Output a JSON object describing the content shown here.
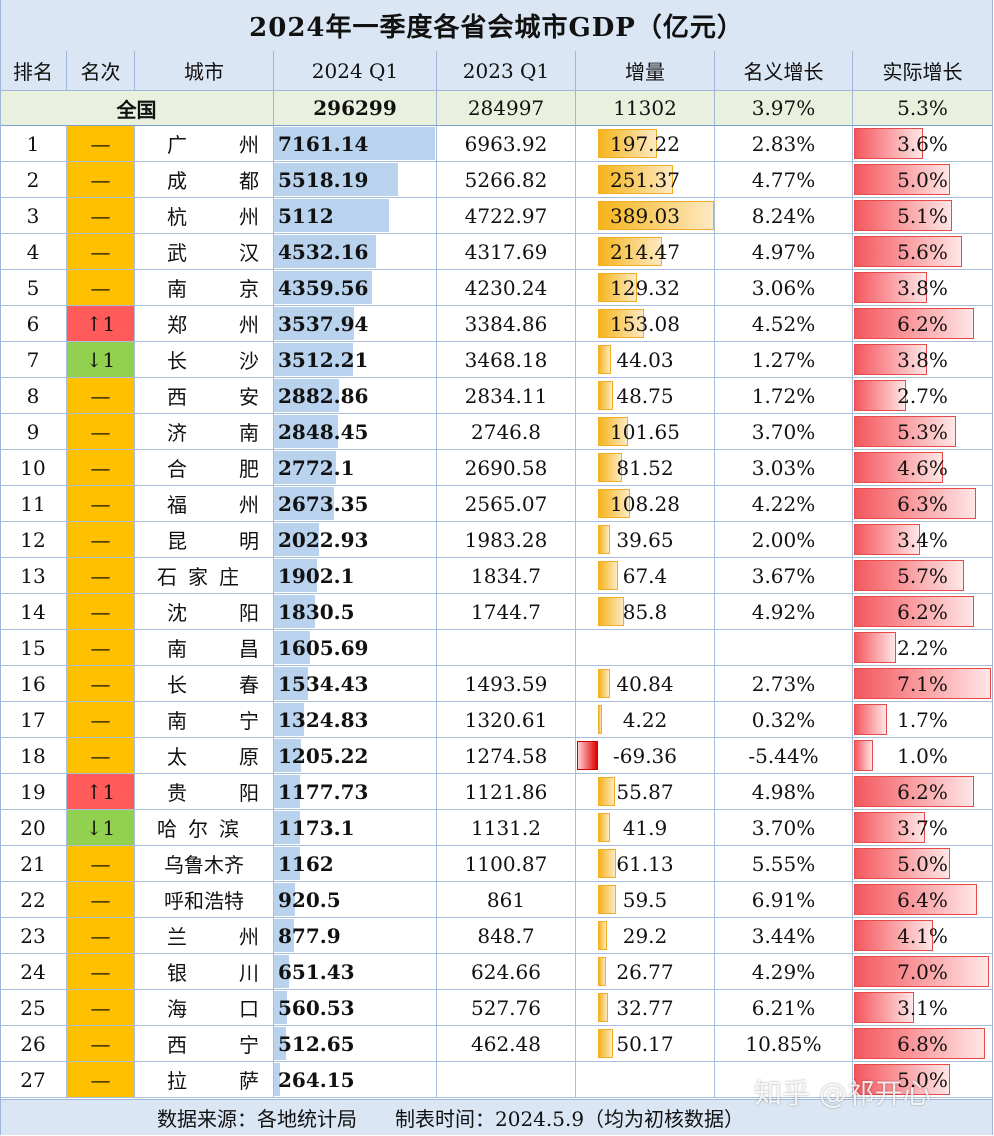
{
  "title": "2024年一季度各省会城市GDP（亿元）",
  "headers": [
    "排名",
    "名次",
    "城市",
    "2024 Q1",
    "2023 Q1",
    "增量",
    "名义增长",
    "实际增长"
  ],
  "national": {
    "label": "全国",
    "gdp2024": "296299",
    "gdp2023": "284997",
    "inc": "11302",
    "nominal": "3.97%",
    "real": "5.3%"
  },
  "colors": {
    "header": "#dbe6f4",
    "national": "#e9f0dd",
    "same": "#ffc000",
    "up": "#ff5b5b",
    "down": "#92d050"
  },
  "chart_data": {
    "type": "table",
    "columns": [
      "排名",
      "名次",
      "城市",
      "2024 Q1",
      "2023 Q1",
      "增量",
      "名义增长",
      "实际增长"
    ],
    "rows": [
      {
        "rank": "1",
        "move": "—",
        "dir": "same",
        "city": "广州",
        "gdp2024": "7161.14",
        "gdp2023": "6963.92",
        "inc": "197.22",
        "nominal": "2.83%",
        "real": "3.6%"
      },
      {
        "rank": "2",
        "move": "—",
        "dir": "same",
        "city": "成都",
        "gdp2024": "5518.19",
        "gdp2023": "5266.82",
        "inc": "251.37",
        "nominal": "4.77%",
        "real": "5.0%"
      },
      {
        "rank": "3",
        "move": "—",
        "dir": "same",
        "city": "杭州",
        "gdp2024": "5112",
        "gdp2023": "4722.97",
        "inc": "389.03",
        "nominal": "8.24%",
        "real": "5.1%"
      },
      {
        "rank": "4",
        "move": "—",
        "dir": "same",
        "city": "武汉",
        "gdp2024": "4532.16",
        "gdp2023": "4317.69",
        "inc": "214.47",
        "nominal": "4.97%",
        "real": "5.6%"
      },
      {
        "rank": "5",
        "move": "—",
        "dir": "same",
        "city": "南京",
        "gdp2024": "4359.56",
        "gdp2023": "4230.24",
        "inc": "129.32",
        "nominal": "3.06%",
        "real": "3.8%"
      },
      {
        "rank": "6",
        "move": "↑1",
        "dir": "up",
        "city": "郑州",
        "gdp2024": "3537.94",
        "gdp2023": "3384.86",
        "inc": "153.08",
        "nominal": "4.52%",
        "real": "6.2%"
      },
      {
        "rank": "7",
        "move": "↓1",
        "dir": "down",
        "city": "长沙",
        "gdp2024": "3512.21",
        "gdp2023": "3468.18",
        "inc": "44.03",
        "nominal": "1.27%",
        "real": "3.8%"
      },
      {
        "rank": "8",
        "move": "—",
        "dir": "same",
        "city": "西安",
        "gdp2024": "2882.86",
        "gdp2023": "2834.11",
        "inc": "48.75",
        "nominal": "1.72%",
        "real": "2.7%"
      },
      {
        "rank": "9",
        "move": "—",
        "dir": "same",
        "city": "济南",
        "gdp2024": "2848.45",
        "gdp2023": "2746.8",
        "inc": "101.65",
        "nominal": "3.70%",
        "real": "5.3%"
      },
      {
        "rank": "10",
        "move": "—",
        "dir": "same",
        "city": "合肥",
        "gdp2024": "2772.1",
        "gdp2023": "2690.58",
        "inc": "81.52",
        "nominal": "3.03%",
        "real": "4.6%"
      },
      {
        "rank": "11",
        "move": "—",
        "dir": "same",
        "city": "福州",
        "gdp2024": "2673.35",
        "gdp2023": "2565.07",
        "inc": "108.28",
        "nominal": "4.22%",
        "real": "6.3%"
      },
      {
        "rank": "12",
        "move": "—",
        "dir": "same",
        "city": "昆明",
        "gdp2024": "2022.93",
        "gdp2023": "1983.28",
        "inc": "39.65",
        "nominal": "2.00%",
        "real": "3.4%"
      },
      {
        "rank": "13",
        "move": "—",
        "dir": "same",
        "city": "石家庄",
        "gdp2024": "1902.1",
        "gdp2023": "1834.7",
        "inc": "67.4",
        "nominal": "3.67%",
        "real": "5.7%"
      },
      {
        "rank": "14",
        "move": "—",
        "dir": "same",
        "city": "沈阳",
        "gdp2024": "1830.5",
        "gdp2023": "1744.7",
        "inc": "85.8",
        "nominal": "4.92%",
        "real": "6.2%"
      },
      {
        "rank": "15",
        "move": "—",
        "dir": "same",
        "city": "南昌",
        "gdp2024": "1605.69",
        "gdp2023": "",
        "inc": "",
        "nominal": "",
        "real": "2.2%"
      },
      {
        "rank": "16",
        "move": "—",
        "dir": "same",
        "city": "长春",
        "gdp2024": "1534.43",
        "gdp2023": "1493.59",
        "inc": "40.84",
        "nominal": "2.73%",
        "real": "7.1%"
      },
      {
        "rank": "17",
        "move": "—",
        "dir": "same",
        "city": "南宁",
        "gdp2024": "1324.83",
        "gdp2023": "1320.61",
        "inc": "4.22",
        "nominal": "0.32%",
        "real": "1.7%"
      },
      {
        "rank": "18",
        "move": "—",
        "dir": "same",
        "city": "太原",
        "gdp2024": "1205.22",
        "gdp2023": "1274.58",
        "inc": "-69.36",
        "nominal": "-5.44%",
        "real": "1.0%"
      },
      {
        "rank": "19",
        "move": "↑1",
        "dir": "up",
        "city": "贵阳",
        "gdp2024": "1177.73",
        "gdp2023": "1121.86",
        "inc": "55.87",
        "nominal": "4.98%",
        "real": "6.2%"
      },
      {
        "rank": "20",
        "move": "↓1",
        "dir": "down",
        "city": "哈尔滨",
        "gdp2024": "1173.1",
        "gdp2023": "1131.2",
        "inc": "41.9",
        "nominal": "3.70%",
        "real": "3.7%"
      },
      {
        "rank": "21",
        "move": "—",
        "dir": "same",
        "city": "乌鲁木齐",
        "gdp2024": "1162",
        "gdp2023": "1100.87",
        "inc": "61.13",
        "nominal": "5.55%",
        "real": "5.0%"
      },
      {
        "rank": "22",
        "move": "—",
        "dir": "same",
        "city": "呼和浩特",
        "gdp2024": "920.5",
        "gdp2023": "861",
        "inc": "59.5",
        "nominal": "6.91%",
        "real": "6.4%"
      },
      {
        "rank": "23",
        "move": "—",
        "dir": "same",
        "city": "兰州",
        "gdp2024": "877.9",
        "gdp2023": "848.7",
        "inc": "29.2",
        "nominal": "3.44%",
        "real": "4.1%"
      },
      {
        "rank": "24",
        "move": "—",
        "dir": "same",
        "city": "银川",
        "gdp2024": "651.43",
        "gdp2023": "624.66",
        "inc": "26.77",
        "nominal": "4.29%",
        "real": "7.0%"
      },
      {
        "rank": "25",
        "move": "—",
        "dir": "same",
        "city": "海口",
        "gdp2024": "560.53",
        "gdp2023": "527.76",
        "inc": "32.77",
        "nominal": "6.21%",
        "real": "3.1%"
      },
      {
        "rank": "26",
        "move": "—",
        "dir": "same",
        "city": "西宁",
        "gdp2024": "512.65",
        "gdp2023": "462.48",
        "inc": "50.17",
        "nominal": "10.85%",
        "real": "6.8%"
      },
      {
        "rank": "27",
        "move": "—",
        "dir": "same",
        "city": "拉萨",
        "gdp2024": "264.15",
        "gdp2023": "",
        "inc": "",
        "nominal": "",
        "real": "5.0%"
      }
    ]
  },
  "footer": {
    "source": "数据来源：各地统计局",
    "date": "制表时间：2024.5.9（均为初核数据）"
  },
  "watermark": "知乎 @祁开心"
}
